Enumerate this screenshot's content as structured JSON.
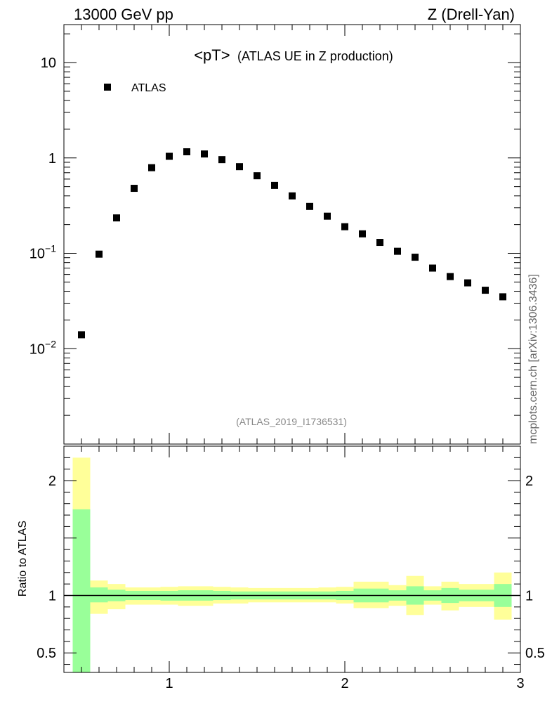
{
  "header": {
    "left": "13000 GeV pp",
    "right": "Z (Drell-Yan)"
  },
  "sidebar_credit": "mcplots.cern.ch [arXiv:1306.3436]",
  "colors": {
    "marker": "#000000",
    "band_outer": "#ffff99",
    "band_inner": "#99ff99",
    "ref_line": "#000000"
  },
  "chart_data": [
    {
      "type": "scatter",
      "title": "<pT> (ATLAS UE in Z production)",
      "title_main": "<pT>",
      "title_sub": "(ATLAS UE in Z production)",
      "watermark": "(ATLAS_2019_I1736531)",
      "legend": {
        "position": "top-left",
        "entries": [
          "ATLAS"
        ]
      },
      "xlim": [
        0.4,
        3.0
      ],
      "ylim": [
        0.001,
        25
      ],
      "yscale": "log",
      "xticks": [
        1,
        2,
        3
      ],
      "yticks": [
        {
          "value": 10,
          "label": "10"
        },
        {
          "value": 1,
          "label": "1"
        },
        {
          "value": 0.1,
          "label": "10",
          "exp": "−1"
        },
        {
          "value": 0.01,
          "label": "10",
          "exp": "−2"
        }
      ],
      "series": [
        {
          "name": "ATLAS",
          "marker": "square",
          "x": [
            0.5,
            0.6,
            0.7,
            0.8,
            0.9,
            1.0,
            1.1,
            1.2,
            1.3,
            1.4,
            1.5,
            1.6,
            1.7,
            1.8,
            1.9,
            2.0,
            2.1,
            2.2,
            2.3,
            2.4,
            2.5,
            2.6,
            2.7,
            2.8,
            2.9
          ],
          "y": [
            0.014,
            0.098,
            0.235,
            0.48,
            0.79,
            1.04,
            1.16,
            1.1,
            0.96,
            0.81,
            0.65,
            0.515,
            0.4,
            0.31,
            0.245,
            0.19,
            0.16,
            0.13,
            0.105,
            0.091,
            0.07,
            0.057,
            0.049,
            0.041,
            0.035
          ]
        }
      ]
    },
    {
      "type": "area",
      "ylabel": "Ratio to ATLAS",
      "xlim": [
        0.4,
        3.0
      ],
      "ylim": [
        0.33,
        2.3
      ],
      "xticks": [
        1,
        2,
        3
      ],
      "yticks": [
        {
          "value": 2,
          "label": "2"
        },
        {
          "value": 1,
          "label": "1"
        },
        {
          "value": 0.5,
          "label": "0.5"
        }
      ],
      "reference_line": 1,
      "bins": [
        {
          "lo": 0.45,
          "hi": 0.55,
          "outer": [
            0.2,
            2.2
          ],
          "inner": [
            0.2,
            1.75
          ]
        },
        {
          "lo": 0.55,
          "hi": 0.65,
          "outer": [
            0.84,
            1.13
          ],
          "inner": [
            0.94,
            1.07
          ]
        },
        {
          "lo": 0.65,
          "hi": 0.75,
          "outer": [
            0.88,
            1.1
          ],
          "inner": [
            0.95,
            1.05
          ]
        },
        {
          "lo": 0.75,
          "hi": 0.85,
          "outer": [
            0.92,
            1.07
          ],
          "inner": [
            0.96,
            1.04
          ]
        },
        {
          "lo": 0.85,
          "hi": 0.95,
          "outer": [
            0.92,
            1.07
          ],
          "inner": [
            0.96,
            1.04
          ]
        },
        {
          "lo": 0.95,
          "hi": 1.05,
          "outer": [
            0.92,
            1.075
          ],
          "inner": [
            0.955,
            1.04
          ]
        },
        {
          "lo": 1.05,
          "hi": 1.15,
          "outer": [
            0.91,
            1.08
          ],
          "inner": [
            0.955,
            1.045
          ]
        },
        {
          "lo": 1.15,
          "hi": 1.25,
          "outer": [
            0.91,
            1.08
          ],
          "inner": [
            0.955,
            1.045
          ]
        },
        {
          "lo": 1.25,
          "hi": 1.35,
          "outer": [
            0.93,
            1.075
          ],
          "inner": [
            0.96,
            1.04
          ]
        },
        {
          "lo": 1.35,
          "hi": 1.45,
          "outer": [
            0.93,
            1.07
          ],
          "inner": [
            0.965,
            1.035
          ]
        },
        {
          "lo": 1.45,
          "hi": 1.55,
          "outer": [
            0.94,
            1.065
          ],
          "inner": [
            0.965,
            1.035
          ]
        },
        {
          "lo": 1.55,
          "hi": 1.65,
          "outer": [
            0.94,
            1.065
          ],
          "inner": [
            0.965,
            1.035
          ]
        },
        {
          "lo": 1.65,
          "hi": 1.75,
          "outer": [
            0.94,
            1.065
          ],
          "inner": [
            0.965,
            1.035
          ]
        },
        {
          "lo": 1.75,
          "hi": 1.85,
          "outer": [
            0.94,
            1.065
          ],
          "inner": [
            0.965,
            1.035
          ]
        },
        {
          "lo": 1.85,
          "hi": 1.95,
          "outer": [
            0.94,
            1.07
          ],
          "inner": [
            0.965,
            1.035
          ]
        },
        {
          "lo": 1.95,
          "hi": 2.05,
          "outer": [
            0.93,
            1.075
          ],
          "inner": [
            0.96,
            1.04
          ]
        },
        {
          "lo": 2.05,
          "hi": 2.15,
          "outer": [
            0.89,
            1.12
          ],
          "inner": [
            0.94,
            1.06
          ]
        },
        {
          "lo": 2.15,
          "hi": 2.25,
          "outer": [
            0.89,
            1.12
          ],
          "inner": [
            0.94,
            1.06
          ]
        },
        {
          "lo": 2.25,
          "hi": 2.35,
          "outer": [
            0.91,
            1.09
          ],
          "inner": [
            0.955,
            1.045
          ]
        },
        {
          "lo": 2.35,
          "hi": 2.45,
          "outer": [
            0.83,
            1.17
          ],
          "inner": [
            0.92,
            1.08
          ]
        },
        {
          "lo": 2.45,
          "hi": 2.55,
          "outer": [
            0.92,
            1.08
          ],
          "inner": [
            0.955,
            1.045
          ]
        },
        {
          "lo": 2.55,
          "hi": 2.65,
          "outer": [
            0.87,
            1.12
          ],
          "inner": [
            0.935,
            1.065
          ]
        },
        {
          "lo": 2.65,
          "hi": 2.75,
          "outer": [
            0.9,
            1.1
          ],
          "inner": [
            0.95,
            1.05
          ]
        },
        {
          "lo": 2.75,
          "hi": 2.85,
          "outer": [
            0.9,
            1.1
          ],
          "inner": [
            0.95,
            1.05
          ]
        },
        {
          "lo": 2.85,
          "hi": 2.95,
          "outer": [
            0.79,
            1.2
          ],
          "inner": [
            0.9,
            1.1
          ]
        }
      ]
    }
  ]
}
